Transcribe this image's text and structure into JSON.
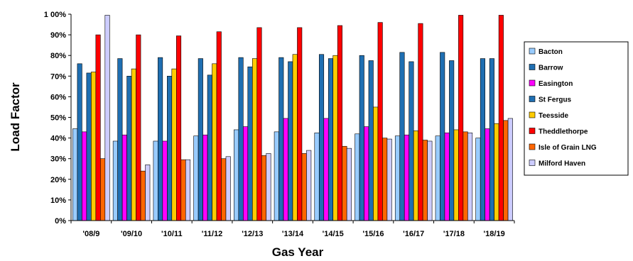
{
  "chart_data": {
    "type": "bar",
    "title": "",
    "xlabel": "Gas Year",
    "ylabel": "Load Factor",
    "ylim": [
      0,
      100
    ],
    "y_ticks": [
      "0%",
      "10%",
      "20%",
      "30%",
      "40%",
      "50%",
      "60%",
      "70%",
      "80%",
      "90%",
      "1 00%"
    ],
    "grid": false,
    "legend_position": "right",
    "categories": [
      "'08/9",
      "'09/10",
      "'10/11",
      "'11/12",
      "'12/13",
      "'13/14",
      "'14/15",
      "'15/16",
      "'16/17",
      "'17/18",
      "'18/19"
    ],
    "series": [
      {
        "name": "Bacton",
        "color": "#99ccff",
        "values": [
          44.5,
          38.5,
          38.5,
          41,
          44,
          43,
          42.5,
          42,
          41,
          41,
          40
        ]
      },
      {
        "name": "Barrow",
        "color": "#1f6fb2",
        "values": [
          76,
          78.5,
          79,
          78.5,
          79,
          79,
          80.5,
          80,
          81.5,
          81.5,
          78.5
        ]
      },
      {
        "name": "Easington",
        "color": "#ff00ff",
        "values": [
          43,
          41.5,
          38.5,
          41.5,
          45.5,
          49.5,
          49.5,
          45.5,
          41.5,
          42.5,
          44.5
        ]
      },
      {
        "name": "St Fergus",
        "color": "#1f6fb2",
        "values": [
          71.5,
          70,
          70,
          70.5,
          74.5,
          77,
          78.5,
          77.5,
          77,
          77.5,
          78.5
        ]
      },
      {
        "name": "Teesside",
        "color": "#ffcc00",
        "values": [
          72,
          73.5,
          73.5,
          76,
          78.5,
          80.5,
          80,
          55,
          43.5,
          44,
          47
        ]
      },
      {
        "name": "Theddlethorpe",
        "color": "#ff0000",
        "values": [
          90,
          90,
          89.5,
          91.5,
          93.5,
          93.5,
          94.5,
          96,
          95.5,
          99.5,
          99.5
        ]
      },
      {
        "name": "Isle of Grain LNG",
        "color": "#ff6600",
        "values": [
          30,
          24,
          29.5,
          30,
          31.5,
          32.5,
          36,
          40,
          39,
          43,
          48.5
        ]
      },
      {
        "name": "Milford Haven",
        "color": "#ccccff",
        "values": [
          99.5,
          27,
          29.5,
          31,
          32.5,
          34,
          35,
          39.5,
          38.5,
          42.5,
          49.5
        ]
      }
    ]
  }
}
